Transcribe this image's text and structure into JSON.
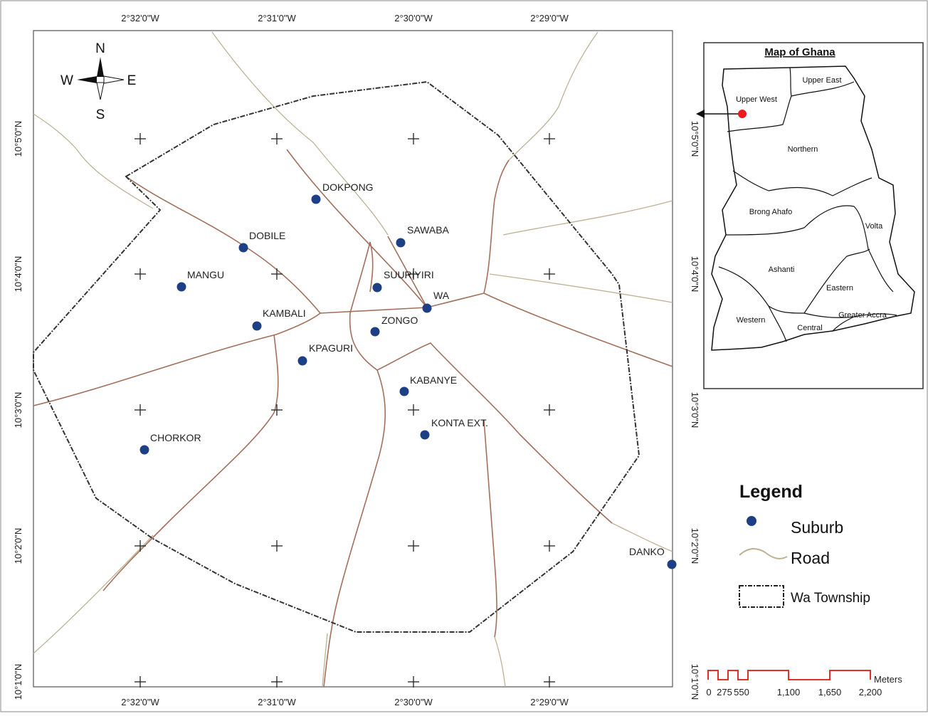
{
  "map": {
    "top_lon_labels": [
      "2°32'0\"W",
      "2°31'0\"W",
      "2°30'0\"W",
      "2°29'0\"W"
    ],
    "bottom_lon_labels": [
      "2°32'0\"W",
      "2°31'0\"W",
      "2°30'0\"W",
      "2°29'0\"W"
    ],
    "left_lat_labels": [
      "10°5'0\"N",
      "10°4'0\"N",
      "10°3'0\"N",
      "10°2'0\"N",
      "10°1'0\"N"
    ],
    "right_lat_labels": [
      "10°5'0\"N",
      "10°4'0\"N",
      "10°3'0\"N",
      "10°2'0\"N",
      "10°1'0\"N"
    ],
    "north_arrow": {
      "n": "N",
      "s": "S",
      "e": "E",
      "w": "W"
    },
    "suburbs": [
      {
        "name": "DOKPONG"
      },
      {
        "name": "DOBILE"
      },
      {
        "name": "SAWABA"
      },
      {
        "name": "MANGU"
      },
      {
        "name": "SUURIYIRI"
      },
      {
        "name": "WA"
      },
      {
        "name": "KAMBALI"
      },
      {
        "name": "ZONGO"
      },
      {
        "name": "KPAGURI"
      },
      {
        "name": "KABANYE"
      },
      {
        "name": "KONTA EXT."
      },
      {
        "name": "CHORKOR"
      },
      {
        "name": "DANKO"
      }
    ]
  },
  "inset": {
    "title": "Map of Ghana",
    "regions": [
      "Upper East",
      "Upper West",
      "Northern",
      "Brong Ahafo",
      "Volta",
      "Ashanti",
      "Eastern",
      "Western",
      "Central",
      "Greater Accra"
    ]
  },
  "legend": {
    "title": "Legend",
    "items": [
      {
        "label": "Suburb",
        "icon": "suburb-dot-icon"
      },
      {
        "label": "Road",
        "icon": "road-line-icon"
      },
      {
        "label": "Wa Township",
        "icon": "township-boundary-icon"
      }
    ]
  },
  "scale_bar": {
    "unit": "Meters",
    "ticks": [
      "0",
      "275",
      "550",
      "1,100",
      "1,650",
      "2,200"
    ]
  },
  "colors": {
    "road_main": "#a3705c",
    "road_minor": "#bdb394",
    "suburb_dot": "#1d3f86",
    "scale_bar": "#e0312f",
    "inset_marker": "#ee1b1b"
  }
}
